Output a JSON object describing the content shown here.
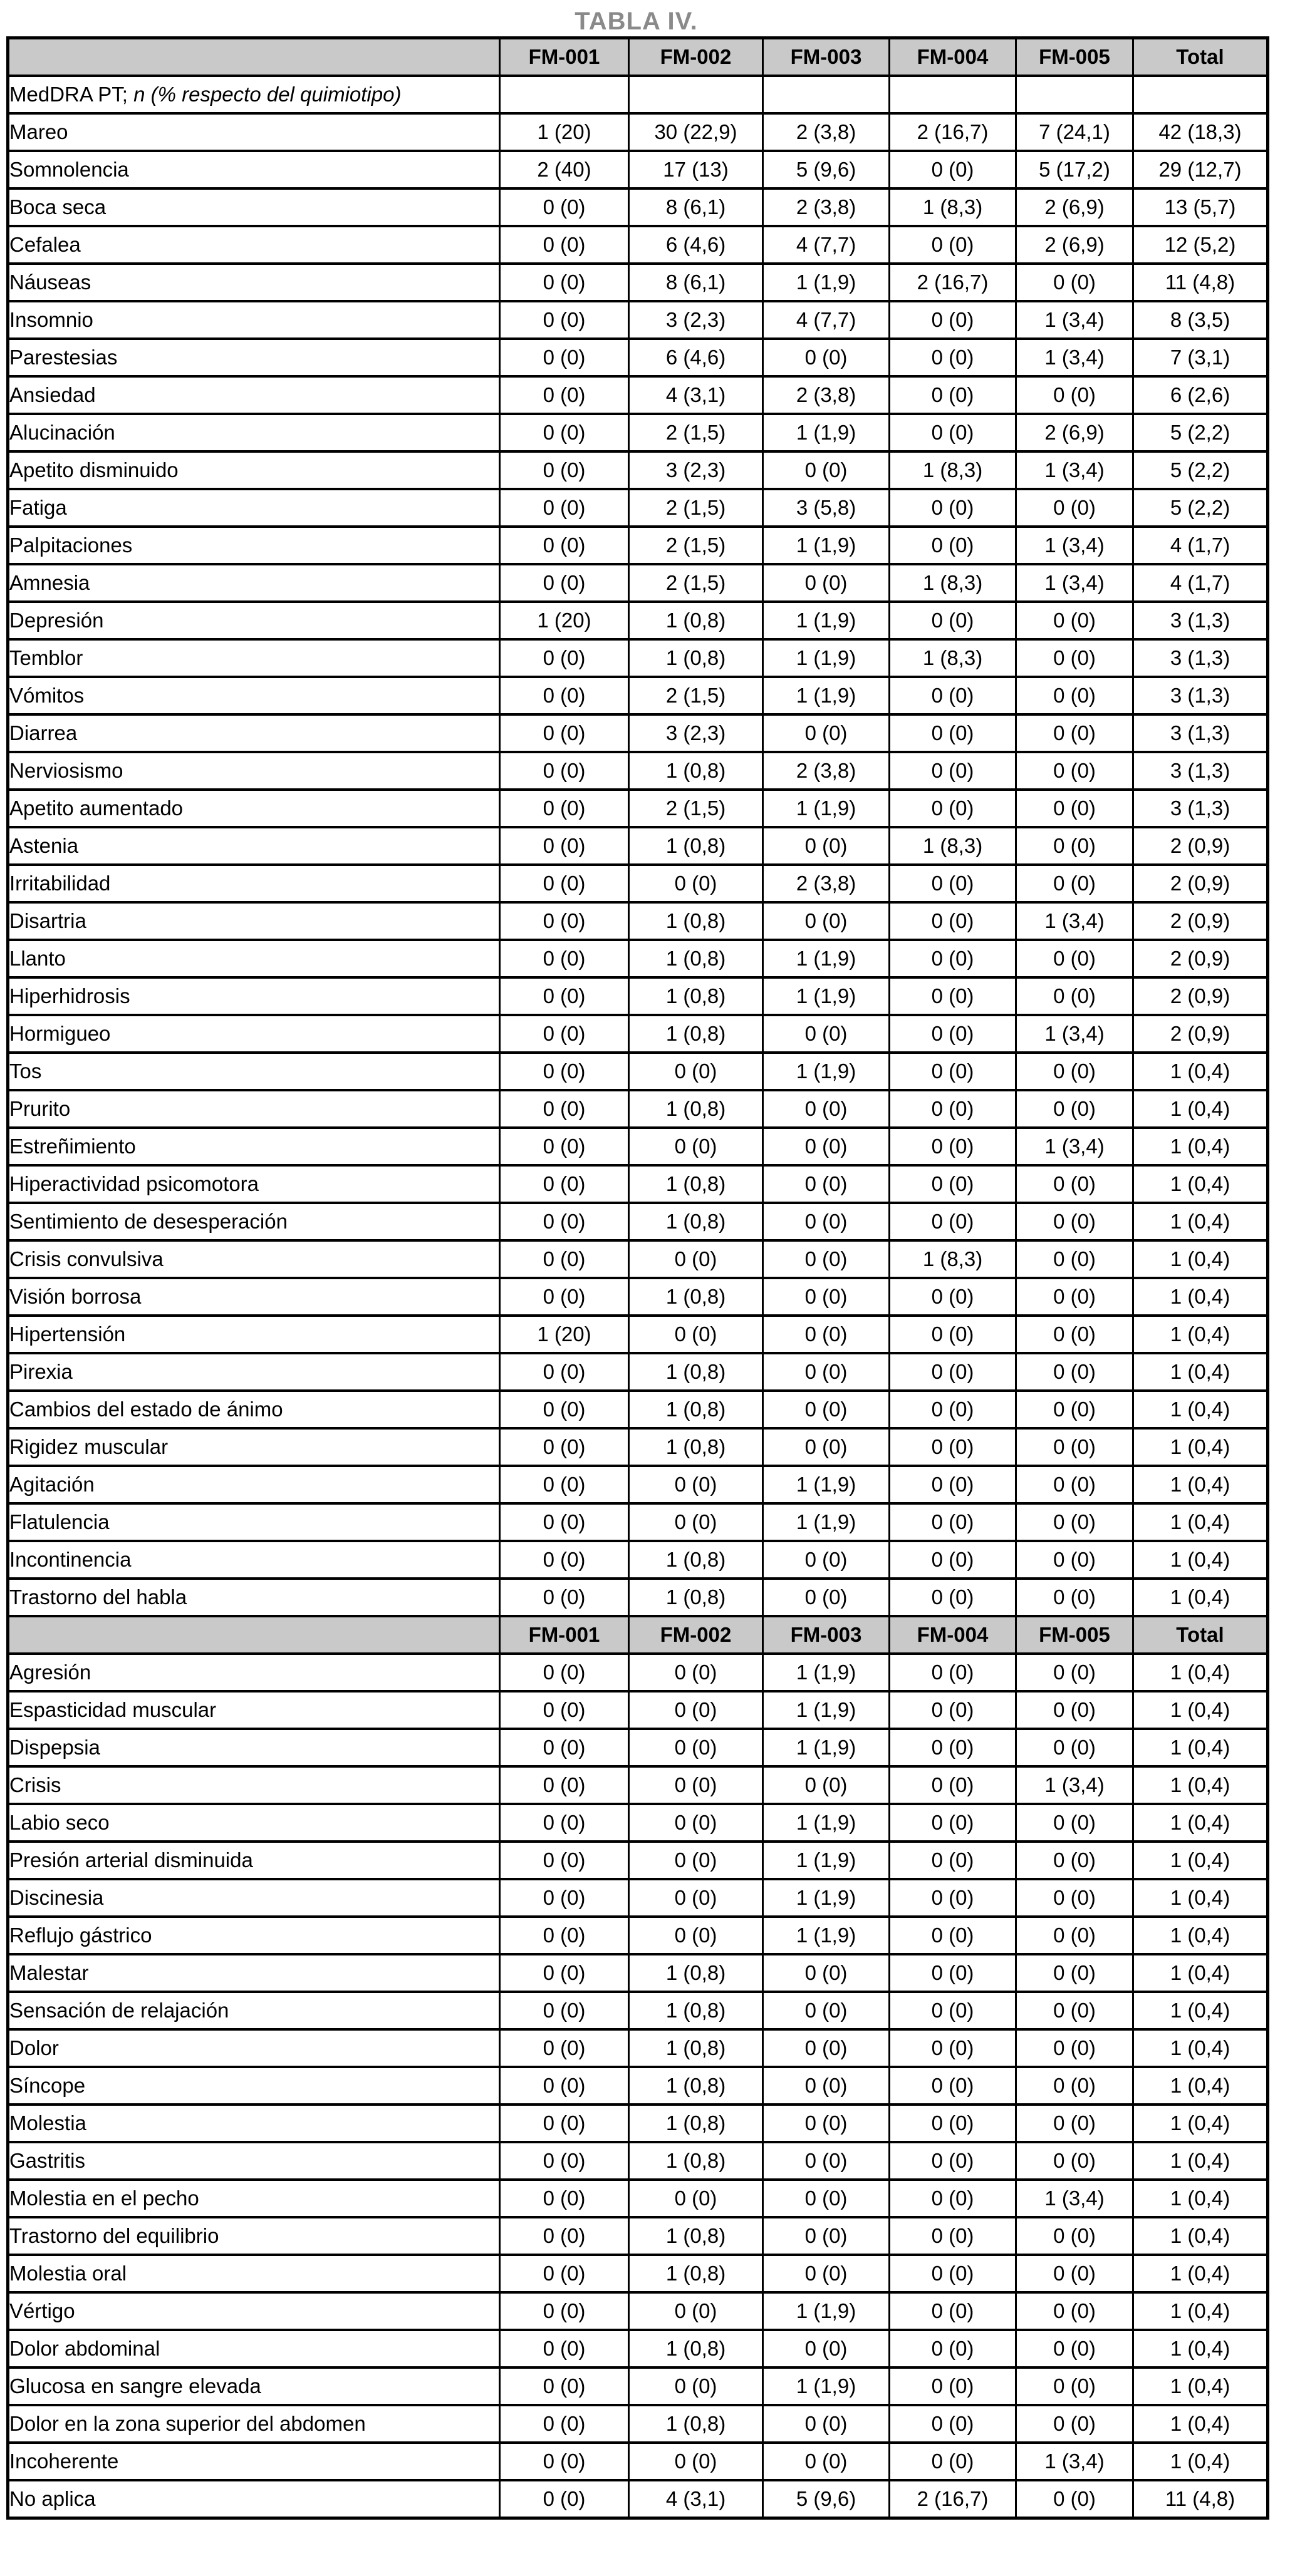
{
  "title": "TABLA IV.",
  "table": {
    "header_columns": [
      "FM-001",
      "FM-002",
      "FM-003",
      "FM-004",
      "FM-005",
      "Total"
    ],
    "subheader_label": "MedDRA PT;",
    "subheader_note": " n (% respecto del quimiotipo)",
    "rows_block1": [
      {
        "label": "Mareo",
        "values": [
          "1 (20)",
          "30 (22,9)",
          "2 (3,8)",
          "2 (16,7)",
          "7 (24,1)",
          "42 (18,3)"
        ]
      },
      {
        "label": "Somnolencia",
        "values": [
          "2 (40)",
          "17 (13)",
          "5 (9,6)",
          "0 (0)",
          "5 (17,2)",
          "29 (12,7)"
        ]
      },
      {
        "label": "Boca seca",
        "values": [
          "0 (0)",
          "8 (6,1)",
          "2 (3,8)",
          "1 (8,3)",
          "2 (6,9)",
          "13 (5,7)"
        ]
      },
      {
        "label": "Cefalea",
        "values": [
          "0 (0)",
          "6 (4,6)",
          "4 (7,7)",
          "0 (0)",
          "2 (6,9)",
          "12 (5,2)"
        ]
      },
      {
        "label": "Náuseas",
        "values": [
          "0 (0)",
          "8 (6,1)",
          "1 (1,9)",
          "2 (16,7)",
          "0 (0)",
          "11 (4,8)"
        ]
      },
      {
        "label": "Insomnio",
        "values": [
          "0 (0)",
          "3 (2,3)",
          "4 (7,7)",
          "0 (0)",
          "1 (3,4)",
          "8 (3,5)"
        ]
      },
      {
        "label": "Parestesias",
        "values": [
          "0 (0)",
          "6 (4,6)",
          "0 (0)",
          "0 (0)",
          "1 (3,4)",
          "7 (3,1)"
        ]
      },
      {
        "label": "Ansiedad",
        "values": [
          "0 (0)",
          "4 (3,1)",
          "2 (3,8)",
          "0 (0)",
          "0 (0)",
          "6 (2,6)"
        ]
      },
      {
        "label": "Alucinación",
        "values": [
          "0 (0)",
          "2 (1,5)",
          "1 (1,9)",
          "0 (0)",
          "2 (6,9)",
          "5 (2,2)"
        ]
      },
      {
        "label": "Apetito disminuido",
        "values": [
          "0 (0)",
          "3 (2,3)",
          "0 (0)",
          "1 (8,3)",
          "1 (3,4)",
          "5 (2,2)"
        ]
      },
      {
        "label": "Fatiga",
        "values": [
          "0 (0)",
          "2 (1,5)",
          "3 (5,8)",
          "0 (0)",
          "0 (0)",
          "5 (2,2)"
        ]
      },
      {
        "label": "Palpitaciones",
        "values": [
          "0 (0)",
          "2 (1,5)",
          "1 (1,9)",
          "0 (0)",
          "1 (3,4)",
          "4 (1,7)"
        ]
      },
      {
        "label": "Amnesia",
        "values": [
          "0 (0)",
          "2 (1,5)",
          "0 (0)",
          "1 (8,3)",
          "1 (3,4)",
          "4 (1,7)"
        ]
      },
      {
        "label": "Depresión",
        "values": [
          "1 (20)",
          "1 (0,8)",
          "1 (1,9)",
          "0 (0)",
          "0 (0)",
          "3 (1,3)"
        ]
      },
      {
        "label": "Temblor",
        "values": [
          "0 (0)",
          "1 (0,8)",
          "1 (1,9)",
          "1 (8,3)",
          "0 (0)",
          "3 (1,3)"
        ]
      },
      {
        "label": "Vómitos",
        "values": [
          "0 (0)",
          "2 (1,5)",
          "1 (1,9)",
          "0 (0)",
          "0 (0)",
          "3 (1,3)"
        ]
      },
      {
        "label": "Diarrea",
        "values": [
          "0 (0)",
          "3 (2,3)",
          "0 (0)",
          "0 (0)",
          "0 (0)",
          "3 (1,3)"
        ]
      },
      {
        "label": "Nerviosismo",
        "values": [
          "0 (0)",
          "1 (0,8)",
          "2 (3,8)",
          "0 (0)",
          "0 (0)",
          "3 (1,3)"
        ]
      },
      {
        "label": "Apetito aumentado",
        "values": [
          "0 (0)",
          "2 (1,5)",
          "1 (1,9)",
          "0 (0)",
          "0 (0)",
          "3 (1,3)"
        ]
      },
      {
        "label": "Astenia",
        "values": [
          "0 (0)",
          "1 (0,8)",
          "0 (0)",
          "1 (8,3)",
          "0 (0)",
          "2 (0,9)"
        ]
      },
      {
        "label": "Irritabilidad",
        "values": [
          "0 (0)",
          "0 (0)",
          "2 (3,8)",
          "0 (0)",
          "0 (0)",
          "2 (0,9)"
        ]
      },
      {
        "label": "Disartria",
        "values": [
          "0 (0)",
          "1 (0,8)",
          "0 (0)",
          "0 (0)",
          "1 (3,4)",
          "2 (0,9)"
        ]
      },
      {
        "label": "Llanto",
        "values": [
          "0 (0)",
          "1 (0,8)",
          "1 (1,9)",
          "0 (0)",
          "0 (0)",
          "2 (0,9)"
        ]
      },
      {
        "label": "Hiperhidrosis",
        "values": [
          "0 (0)",
          "1 (0,8)",
          "1 (1,9)",
          "0 (0)",
          "0 (0)",
          "2 (0,9)"
        ]
      },
      {
        "label": "Hormigueo",
        "values": [
          "0 (0)",
          "1 (0,8)",
          "0 (0)",
          "0 (0)",
          "1 (3,4)",
          "2 (0,9)"
        ]
      },
      {
        "label": "Tos",
        "values": [
          "0 (0)",
          "0 (0)",
          "1 (1,9)",
          "0 (0)",
          "0 (0)",
          "1 (0,4)"
        ]
      },
      {
        "label": "Prurito",
        "values": [
          "0 (0)",
          "1 (0,8)",
          "0 (0)",
          "0 (0)",
          "0 (0)",
          "1 (0,4)"
        ]
      },
      {
        "label": "Estreñimiento",
        "values": [
          "0 (0)",
          "0 (0)",
          "0 (0)",
          "0 (0)",
          "1 (3,4)",
          "1 (0,4)"
        ]
      },
      {
        "label": "Hiperactividad psicomotora",
        "values": [
          "0 (0)",
          "1 (0,8)",
          "0 (0)",
          "0 (0)",
          "0 (0)",
          "1 (0,4)"
        ]
      },
      {
        "label": "Sentimiento de desesperación",
        "values": [
          "0 (0)",
          "1 (0,8)",
          "0 (0)",
          "0 (0)",
          "0 (0)",
          "1 (0,4)"
        ]
      },
      {
        "label": "Crisis convulsiva",
        "values": [
          "0 (0)",
          "0 (0)",
          "0 (0)",
          "1 (8,3)",
          "0 (0)",
          "1 (0,4)"
        ]
      },
      {
        "label": "Visión borrosa",
        "values": [
          "0 (0)",
          "1 (0,8)",
          "0 (0)",
          "0 (0)",
          "0 (0)",
          "1 (0,4)"
        ]
      },
      {
        "label": "Hipertensión",
        "values": [
          "1 (20)",
          "0 (0)",
          "0 (0)",
          "0 (0)",
          "0 (0)",
          "1 (0,4)"
        ]
      },
      {
        "label": "Pirexia",
        "values": [
          "0 (0)",
          "1 (0,8)",
          "0 (0)",
          "0 (0)",
          "0 (0)",
          "1 (0,4)"
        ]
      },
      {
        "label": "Cambios del estado de ánimo",
        "values": [
          "0 (0)",
          "1 (0,8)",
          "0 (0)",
          "0 (0)",
          "0 (0)",
          "1 (0,4)"
        ]
      },
      {
        "label": "Rigidez muscular",
        "values": [
          "0 (0)",
          "1 (0,8)",
          "0 (0)",
          "0 (0)",
          "0 (0)",
          "1 (0,4)"
        ]
      },
      {
        "label": "Agitación",
        "values": [
          "0 (0)",
          "0 (0)",
          "1 (1,9)",
          "0 (0)",
          "0 (0)",
          "1 (0,4)"
        ]
      },
      {
        "label": "Flatulencia",
        "values": [
          "0 (0)",
          "0 (0)",
          "1 (1,9)",
          "0 (0)",
          "0 (0)",
          "1 (0,4)"
        ]
      },
      {
        "label": "Incontinencia",
        "values": [
          "0 (0)",
          "1 (0,8)",
          "0 (0)",
          "0 (0)",
          "0 (0)",
          "1 (0,4)"
        ]
      },
      {
        "label": "Trastorno del habla",
        "values": [
          "0 (0)",
          "1 (0,8)",
          "0 (0)",
          "0 (0)",
          "0 (0)",
          "1 (0,4)"
        ]
      }
    ],
    "rows_block2": [
      {
        "label": "Agresión",
        "values": [
          "0 (0)",
          "0 (0)",
          "1 (1,9)",
          "0 (0)",
          "0 (0)",
          "1 (0,4)"
        ]
      },
      {
        "label": "Espasticidad muscular",
        "values": [
          "0 (0)",
          "0 (0)",
          "1 (1,9)",
          "0 (0)",
          "0 (0)",
          "1 (0,4)"
        ]
      },
      {
        "label": "Dispepsia",
        "values": [
          "0 (0)",
          "0 (0)",
          "1 (1,9)",
          "0 (0)",
          "0 (0)",
          "1 (0,4)"
        ]
      },
      {
        "label": "Crisis",
        "values": [
          "0 (0)",
          "0 (0)",
          "0 (0)",
          "0 (0)",
          "1 (3,4)",
          "1 (0,4)"
        ]
      },
      {
        "label": "Labio seco",
        "values": [
          "0 (0)",
          "0 (0)",
          "1 (1,9)",
          "0 (0)",
          "0 (0)",
          "1 (0,4)"
        ]
      },
      {
        "label": "Presión arterial disminuida",
        "values": [
          "0 (0)",
          "0 (0)",
          "1 (1,9)",
          "0 (0)",
          "0 (0)",
          "1 (0,4)"
        ]
      },
      {
        "label": "Discinesia",
        "values": [
          "0 (0)",
          "0 (0)",
          "1 (1,9)",
          "0 (0)",
          "0 (0)",
          "1 (0,4)"
        ]
      },
      {
        "label": "Reflujo gástrico",
        "values": [
          "0 (0)",
          "0 (0)",
          "1 (1,9)",
          "0 (0)",
          "0 (0)",
          "1 (0,4)"
        ]
      },
      {
        "label": "Malestar",
        "values": [
          "0 (0)",
          "1 (0,8)",
          "0 (0)",
          "0 (0)",
          "0 (0)",
          "1 (0,4)"
        ]
      },
      {
        "label": "Sensación de relajación",
        "values": [
          "0 (0)",
          "1 (0,8)",
          "0 (0)",
          "0 (0)",
          "0 (0)",
          "1 (0,4)"
        ]
      },
      {
        "label": "Dolor",
        "values": [
          "0 (0)",
          "1 (0,8)",
          "0 (0)",
          "0 (0)",
          "0 (0)",
          "1 (0,4)"
        ]
      },
      {
        "label": "Síncope",
        "values": [
          "0 (0)",
          "1 (0,8)",
          "0 (0)",
          "0 (0)",
          "0 (0)",
          "1 (0,4)"
        ]
      },
      {
        "label": "Molestia",
        "values": [
          "0 (0)",
          "1 (0,8)",
          "0 (0)",
          "0 (0)",
          "0 (0)",
          "1 (0,4)"
        ]
      },
      {
        "label": "Gastritis",
        "values": [
          "0 (0)",
          "1 (0,8)",
          "0 (0)",
          "0 (0)",
          "0 (0)",
          "1 (0,4)"
        ]
      },
      {
        "label": "Molestia en el pecho",
        "values": [
          "0 (0)",
          "0 (0)",
          "0 (0)",
          "0 (0)",
          "1 (3,4)",
          "1 (0,4)"
        ]
      },
      {
        "label": "Trastorno del equilibrio",
        "values": [
          "0 (0)",
          "1 (0,8)",
          "0 (0)",
          "0 (0)",
          "0 (0)",
          "1 (0,4)"
        ]
      },
      {
        "label": "Molestia oral",
        "values": [
          "0 (0)",
          "1 (0,8)",
          "0 (0)",
          "0 (0)",
          "0 (0)",
          "1 (0,4)"
        ]
      },
      {
        "label": "Vértigo",
        "values": [
          "0 (0)",
          "0 (0)",
          "1 (1,9)",
          "0 (0)",
          "0 (0)",
          "1 (0,4)"
        ]
      },
      {
        "label": "Dolor abdominal",
        "values": [
          "0 (0)",
          "1 (0,8)",
          "0 (0)",
          "0 (0)",
          "0 (0)",
          "1 (0,4)"
        ]
      },
      {
        "label": "Glucosa en sangre elevada",
        "values": [
          "0 (0)",
          "0 (0)",
          "1 (1,9)",
          "0 (0)",
          "0 (0)",
          "1 (0,4)"
        ]
      },
      {
        "label": "Dolor en la zona superior del abdomen",
        "values": [
          "0 (0)",
          "1 (0,8)",
          "0 (0)",
          "0 (0)",
          "0 (0)",
          "1 (0,4)"
        ]
      },
      {
        "label": "Incoherente",
        "values": [
          "0 (0)",
          "0 (0)",
          "0 (0)",
          "0 (0)",
          "1 (3,4)",
          "1 (0,4)"
        ]
      },
      {
        "label": "No aplica",
        "values": [
          "0 (0)",
          "4 (3,1)",
          "5 (9,6)",
          "2 (16,7)",
          "0 (0)",
          "11 (4,8)"
        ]
      }
    ]
  }
}
